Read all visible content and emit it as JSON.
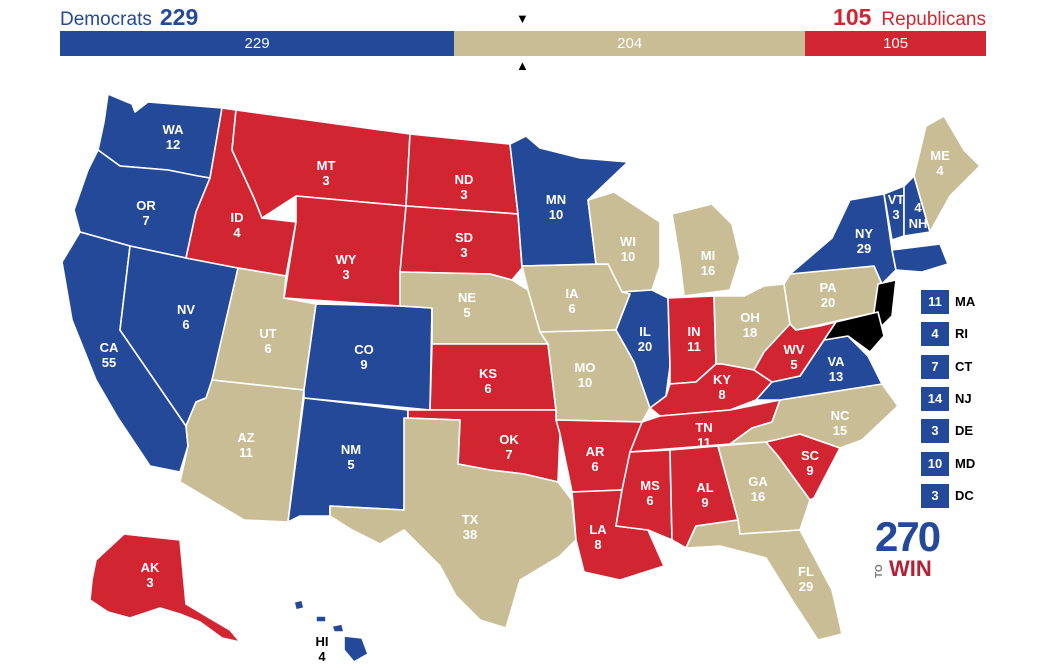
{
  "header": {
    "dem_label": "Democrats",
    "dem_total": "229",
    "rep_label": "Republicans",
    "rep_total": "105"
  },
  "bar": {
    "dem": "229",
    "tossup": "204",
    "rep": "105",
    "dem_value": 229,
    "tossup_value": 204,
    "rep_value": 105
  },
  "colors": {
    "dem": "#244999",
    "rep": "#d22532",
    "tossup": "#c9bd96"
  },
  "states": {
    "WA": {
      "abbr": "WA",
      "ev": "12",
      "party": "dem"
    },
    "OR": {
      "abbr": "OR",
      "ev": "7",
      "party": "dem"
    },
    "CA": {
      "abbr": "CA",
      "ev": "55",
      "party": "dem"
    },
    "NV": {
      "abbr": "NV",
      "ev": "6",
      "party": "dem"
    },
    "ID": {
      "abbr": "ID",
      "ev": "4",
      "party": "rep"
    },
    "MT": {
      "abbr": "MT",
      "ev": "3",
      "party": "rep"
    },
    "WY": {
      "abbr": "WY",
      "ev": "3",
      "party": "rep"
    },
    "UT": {
      "abbr": "UT",
      "ev": "6",
      "party": "tossup"
    },
    "AZ": {
      "abbr": "AZ",
      "ev": "11",
      "party": "tossup"
    },
    "CO": {
      "abbr": "CO",
      "ev": "9",
      "party": "dem"
    },
    "NM": {
      "abbr": "NM",
      "ev": "5",
      "party": "dem"
    },
    "ND": {
      "abbr": "ND",
      "ev": "3",
      "party": "rep"
    },
    "SD": {
      "abbr": "SD",
      "ev": "3",
      "party": "rep"
    },
    "NE": {
      "abbr": "NE",
      "ev": "5",
      "party": "tossup"
    },
    "KS": {
      "abbr": "KS",
      "ev": "6",
      "party": "rep"
    },
    "OK": {
      "abbr": "OK",
      "ev": "7",
      "party": "rep"
    },
    "TX": {
      "abbr": "TX",
      "ev": "38",
      "party": "tossup"
    },
    "MN": {
      "abbr": "MN",
      "ev": "10",
      "party": "dem"
    },
    "IA": {
      "abbr": "IA",
      "ev": "6",
      "party": "tossup"
    },
    "MO": {
      "abbr": "MO",
      "ev": "10",
      "party": "tossup"
    },
    "AR": {
      "abbr": "AR",
      "ev": "6",
      "party": "rep"
    },
    "LA": {
      "abbr": "LA",
      "ev": "8",
      "party": "rep"
    },
    "WI": {
      "abbr": "WI",
      "ev": "10",
      "party": "tossup"
    },
    "IL": {
      "abbr": "IL",
      "ev": "20",
      "party": "dem"
    },
    "MI": {
      "abbr": "MI",
      "ev": "16",
      "party": "tossup"
    },
    "IN": {
      "abbr": "IN",
      "ev": "11",
      "party": "rep"
    },
    "OH": {
      "abbr": "OH",
      "ev": "18",
      "party": "tossup"
    },
    "KY": {
      "abbr": "KY",
      "ev": "8",
      "party": "rep"
    },
    "TN": {
      "abbr": "TN",
      "ev": "11",
      "party": "rep"
    },
    "MS": {
      "abbr": "MS",
      "ev": "6",
      "party": "rep"
    },
    "AL": {
      "abbr": "AL",
      "ev": "9",
      "party": "rep"
    },
    "GA": {
      "abbr": "GA",
      "ev": "16",
      "party": "tossup"
    },
    "FL": {
      "abbr": "FL",
      "ev": "29",
      "party": "tossup"
    },
    "SC": {
      "abbr": "SC",
      "ev": "9",
      "party": "rep"
    },
    "NC": {
      "abbr": "NC",
      "ev": "15",
      "party": "tossup"
    },
    "VA": {
      "abbr": "VA",
      "ev": "13",
      "party": "dem"
    },
    "WV": {
      "abbr": "WV",
      "ev": "5",
      "party": "rep"
    },
    "PA": {
      "abbr": "PA",
      "ev": "20",
      "party": "tossup"
    },
    "NY": {
      "abbr": "NY",
      "ev": "29",
      "party": "dem"
    },
    "VT": {
      "abbr": "VT",
      "ev": "3",
      "party": "dem"
    },
    "NH": {
      "abbr": "NH",
      "ev": "4",
      "party": "dem"
    },
    "ME": {
      "abbr": "ME",
      "ev": "4",
      "party": "tossup"
    },
    "AK": {
      "abbr": "AK",
      "ev": "3",
      "party": "rep"
    },
    "HI": {
      "abbr": "HI",
      "ev": "4",
      "party": "dem"
    }
  },
  "small_states": [
    {
      "abbr": "MA",
      "ev": "11"
    },
    {
      "abbr": "RI",
      "ev": "4"
    },
    {
      "abbr": "CT",
      "ev": "7"
    },
    {
      "abbr": "NJ",
      "ev": "14"
    },
    {
      "abbr": "DE",
      "ev": "3"
    },
    {
      "abbr": "MD",
      "ev": "10"
    },
    {
      "abbr": "DC",
      "ev": "3"
    }
  ],
  "logo": {
    "number": "270",
    "to": "TO",
    "win": "WIN"
  }
}
